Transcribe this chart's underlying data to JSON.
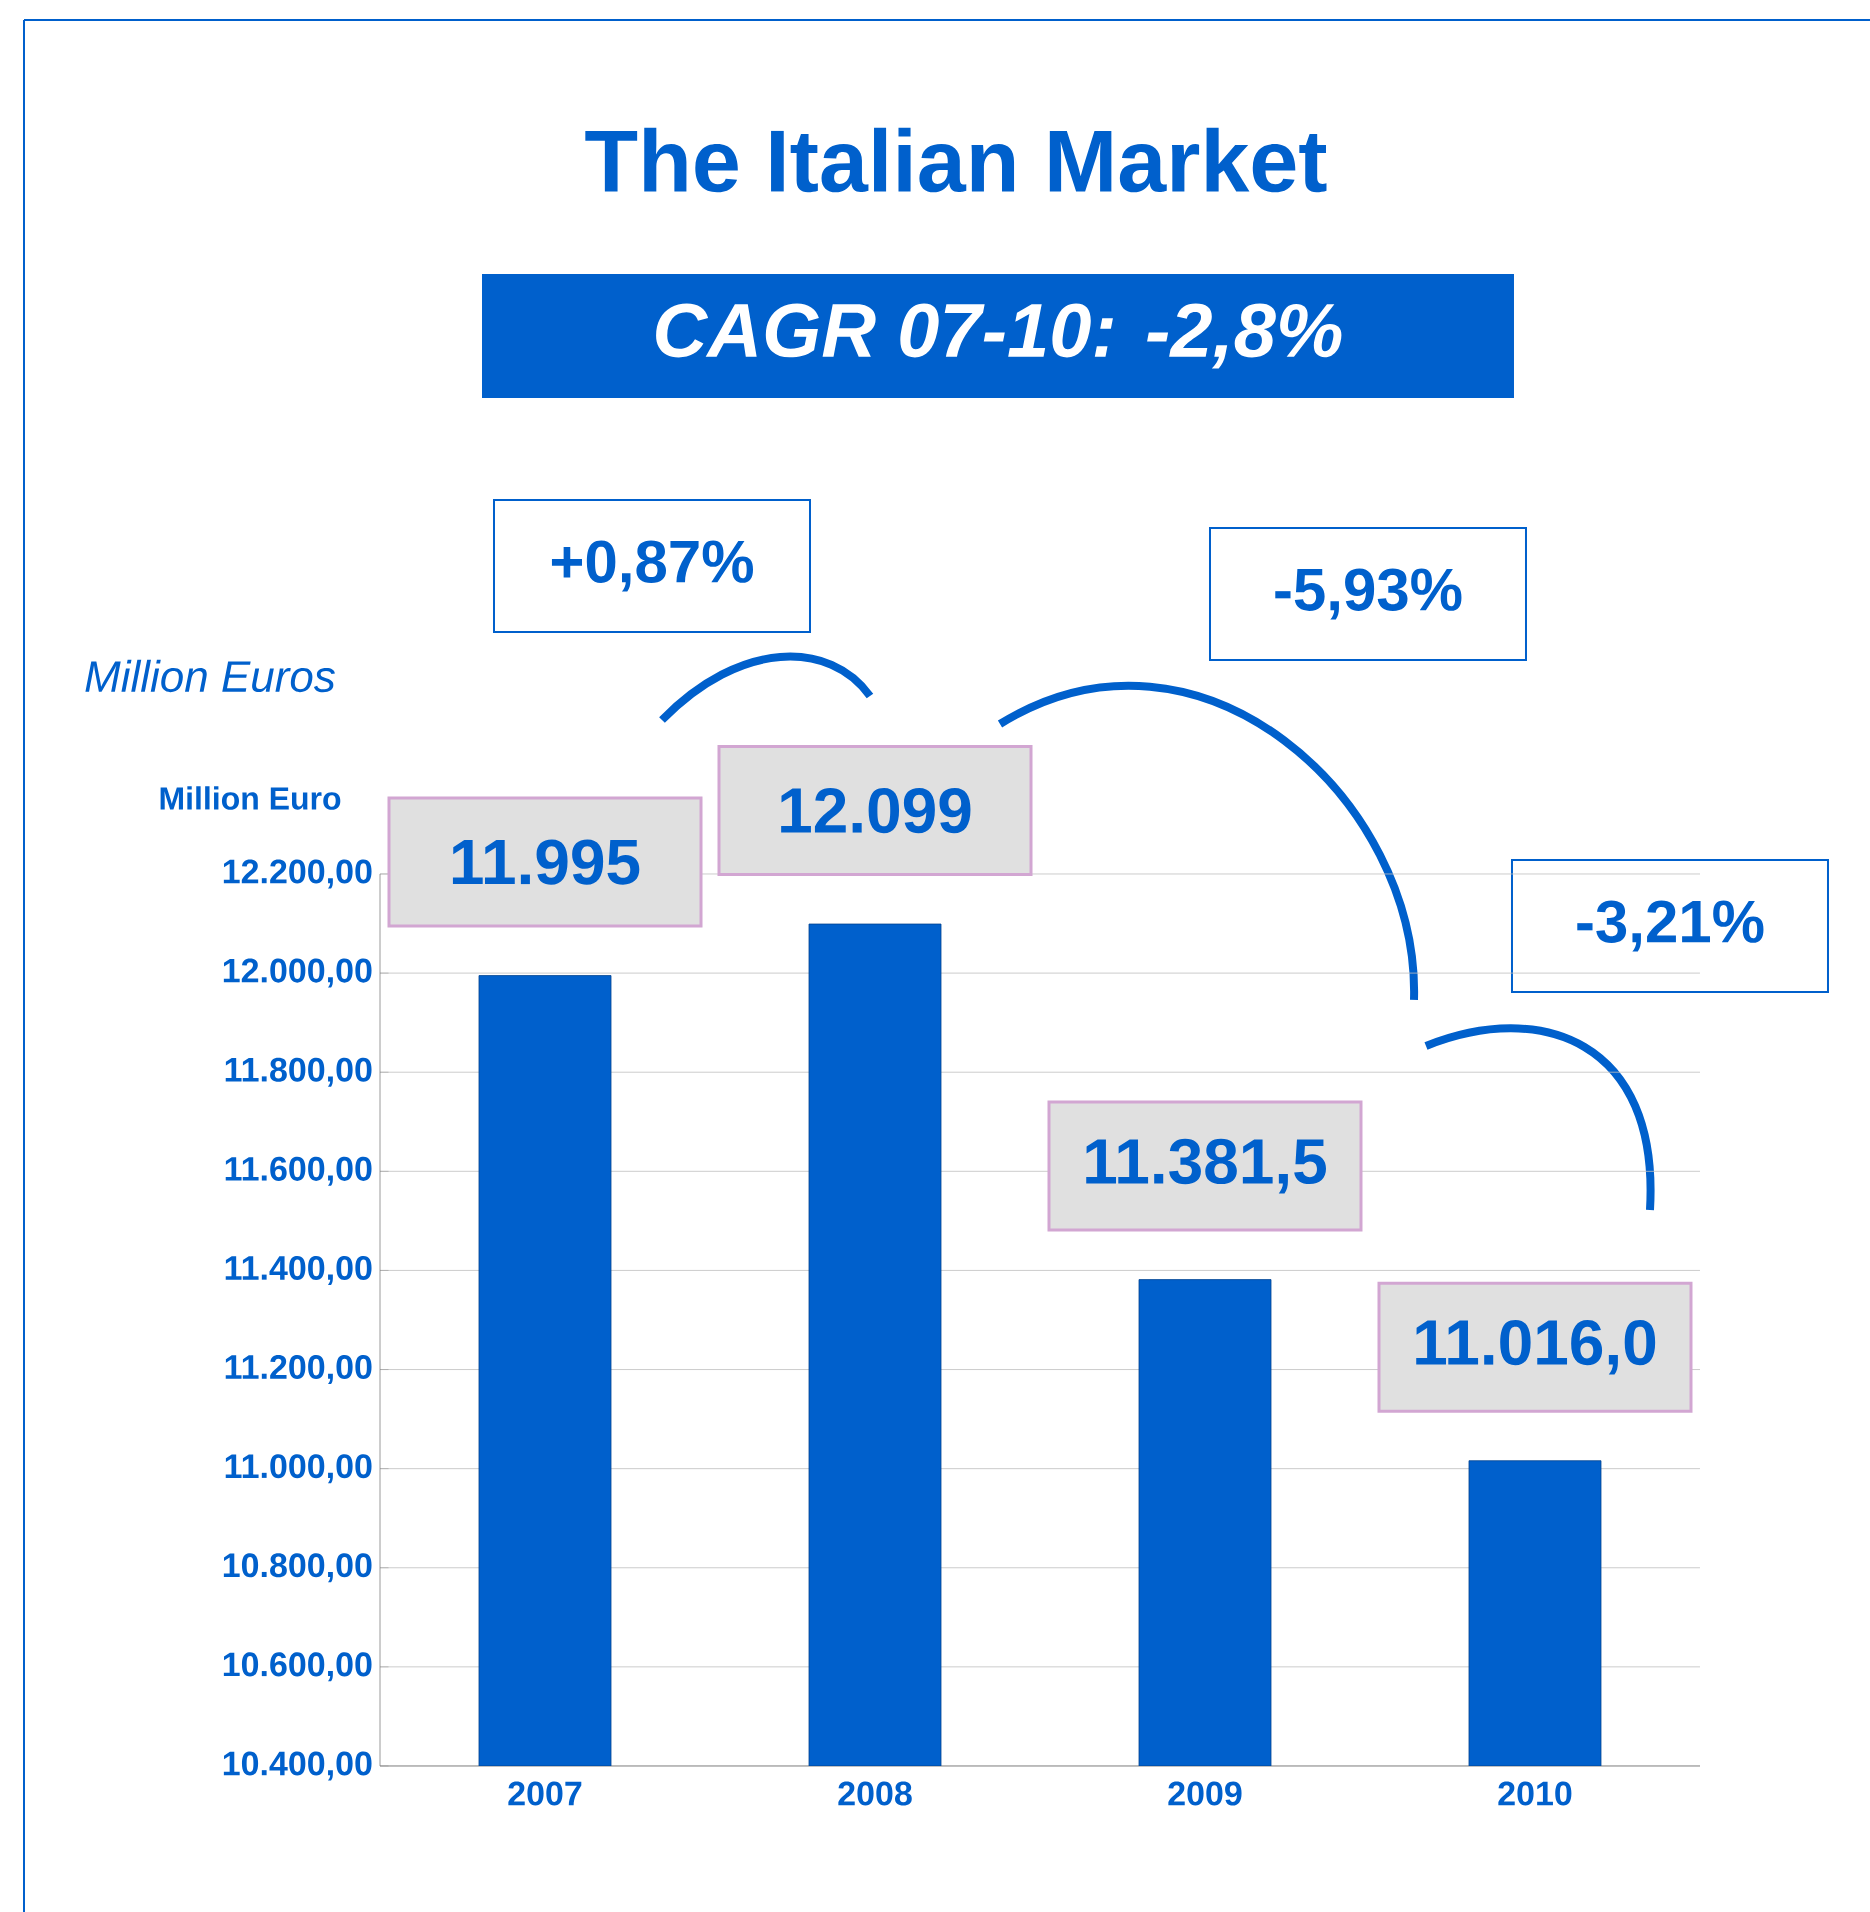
{
  "chart_data": {
    "type": "bar",
    "title": "The Italian Market",
    "subtitle": "CAGR 07-10: -2,8%",
    "ylabel": "Million Euro",
    "annotations": [
      "Million Euros",
      "+0,87%",
      "-5,93%",
      "-3,21%"
    ],
    "categories": [
      "2007",
      "2008",
      "2009",
      "2010"
    ],
    "values": [
      11995,
      12099,
      11381.5,
      11016.0
    ],
    "value_labels": [
      "11.995",
      "12.099",
      "11.381,5",
      "11.016,0"
    ],
    "color": "#0060cc",
    "ylim": [
      10400,
      12200
    ],
    "yticks": [
      {
        "value": 10400,
        "label": "10.400,00"
      },
      {
        "value": 10600,
        "label": "10.600,00"
      },
      {
        "value": 10800,
        "label": "10.800,00"
      },
      {
        "value": 11000,
        "label": "11.000,00"
      },
      {
        "value": 11200,
        "label": "11.200,00"
      },
      {
        "value": 11400,
        "label": "11.400,00"
      },
      {
        "value": 11600,
        "label": "11.600,00"
      },
      {
        "value": 11800,
        "label": "11.800,00"
      },
      {
        "value": 12000,
        "label": "12.000,00"
      },
      {
        "value": 12200,
        "label": "12.200,00"
      }
    ],
    "grid": true
  }
}
